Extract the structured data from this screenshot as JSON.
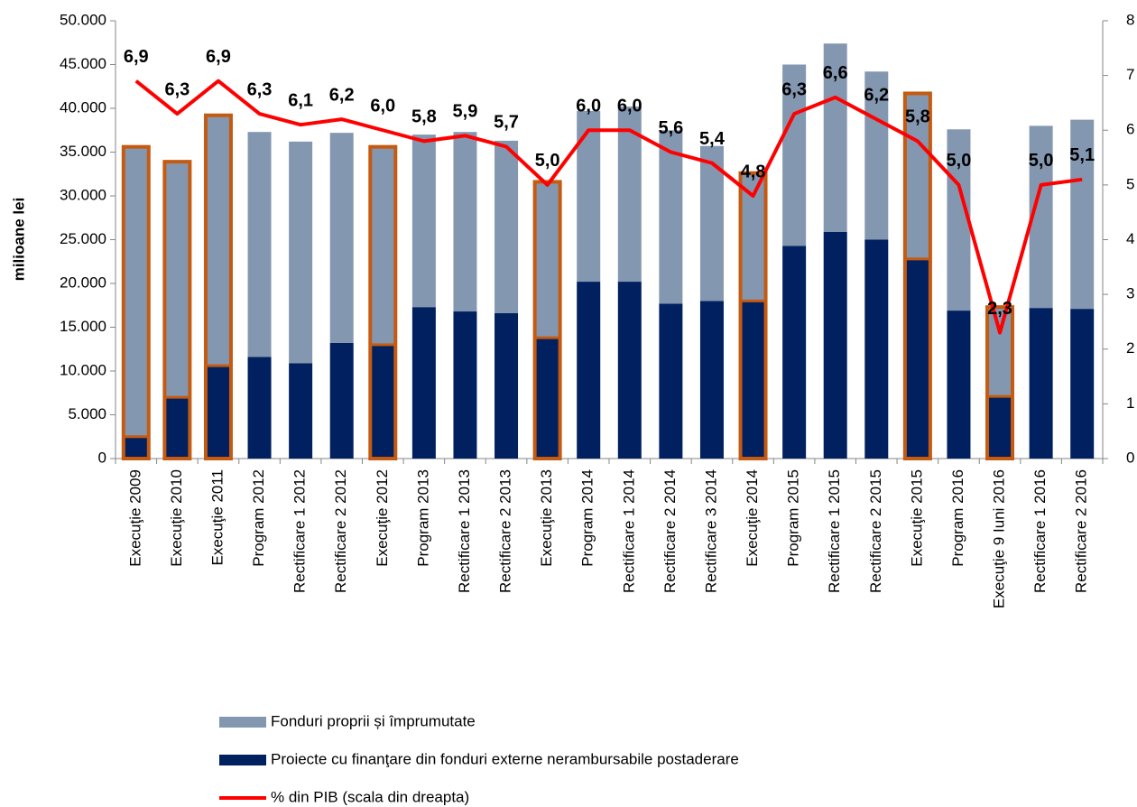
{
  "chart_data": {
    "type": "bar",
    "stacked": true,
    "y_label": "milioane lei",
    "categories": [
      "Execuţie 2009",
      "Execuţie 2010",
      "Execuţie 2011",
      "Program 2012",
      "Rectificare 1 2012",
      "Rectificare 2 2012",
      "Execuţie 2012",
      "Program 2013",
      "Rectificare 1 2013",
      "Rectificare 2 2013",
      "Execuţie 2013",
      "Program 2014",
      "Rectificare 1 2014",
      "Rectificare 2 2014",
      "Rectificare 3 2014",
      "Execuţie 2014",
      "Program 2015",
      "Rectificare 1 2015",
      "Rectificare 2 2015",
      "Execuţie 2015",
      "Program 2016",
      "Execuţie 9 Iuni 2016",
      "Rectificare 1 2016",
      "Rectificare 2 2016"
    ],
    "series": [
      {
        "name": "Proiecte cu finanţare din fonduri externe nerambursabile postaderare",
        "color": "#002060",
        "values": [
          2500,
          7000,
          10600,
          11600,
          10900,
          13200,
          13000,
          17300,
          16800,
          16600,
          13800,
          20200,
          20200,
          17700,
          18000,
          18000,
          24300,
          25900,
          25000,
          22800,
          16900,
          7100,
          17200,
          17100
        ]
      },
      {
        "name": "Fonduri proprii și împrumutate",
        "color": "#8497b0",
        "values": [
          33000,
          26800,
          28500,
          25700,
          25300,
          24000,
          22500,
          19700,
          20500,
          19700,
          17700,
          19500,
          20000,
          19800,
          17700,
          14500,
          20700,
          21500,
          19200,
          18800,
          20700,
          10100,
          20800,
          21600
        ]
      },
      {
        "name": "% din PIB (scala din dreapta)",
        "color": "#ff0000",
        "type": "line",
        "axis": "y2",
        "values": [
          6.9,
          6.3,
          6.9,
          6.3,
          6.1,
          6.2,
          6.0,
          5.8,
          5.9,
          5.7,
          5.0,
          6.0,
          6.0,
          5.6,
          5.4,
          4.8,
          6.3,
          6.6,
          6.2,
          5.8,
          5.0,
          2.3,
          5.0,
          5.1
        ],
        "value_labels": [
          "6,9",
          "6,3",
          "6,9",
          "6,3",
          "6,1",
          "6,2",
          "6,0",
          "5,8",
          "5,9",
          "5,7",
          "5,0",
          "6,0",
          "6,0",
          "5,6",
          "5,4",
          "4,8",
          "6,3",
          "6,6",
          "6,2",
          "5,8",
          "5,0",
          "2,3",
          "5,0",
          "5,1"
        ]
      }
    ],
    "highlight_color": "#c55a11",
    "highlighted": [
      true,
      true,
      true,
      false,
      false,
      false,
      true,
      false,
      false,
      false,
      true,
      false,
      false,
      false,
      false,
      true,
      false,
      false,
      false,
      true,
      false,
      true,
      false,
      false
    ],
    "ylim": [
      0,
      50000
    ],
    "yticks": [
      0,
      {
        "value": 5000,
        "label": "5.000"
      },
      {
        "value": 10000,
        "label": "10.000"
      },
      {
        "value": 15000,
        "label": "15.000"
      },
      {
        "value": 20000,
        "label": "20.000"
      },
      {
        "value": 25000,
        "label": "25.000"
      },
      {
        "value": 30000,
        "label": "30.000"
      },
      {
        "value": 35000,
        "label": "35.000"
      },
      {
        "value": 40000,
        "label": "40.000"
      },
      {
        "value": 45000,
        "label": "45.000"
      },
      {
        "value": 50000,
        "label": "50.000"
      }
    ],
    "y2lim": [
      0,
      8
    ],
    "y2ticks": [
      0,
      1,
      2,
      3,
      4,
      5,
      6,
      7,
      8
    ],
    "legend": "bottom"
  }
}
